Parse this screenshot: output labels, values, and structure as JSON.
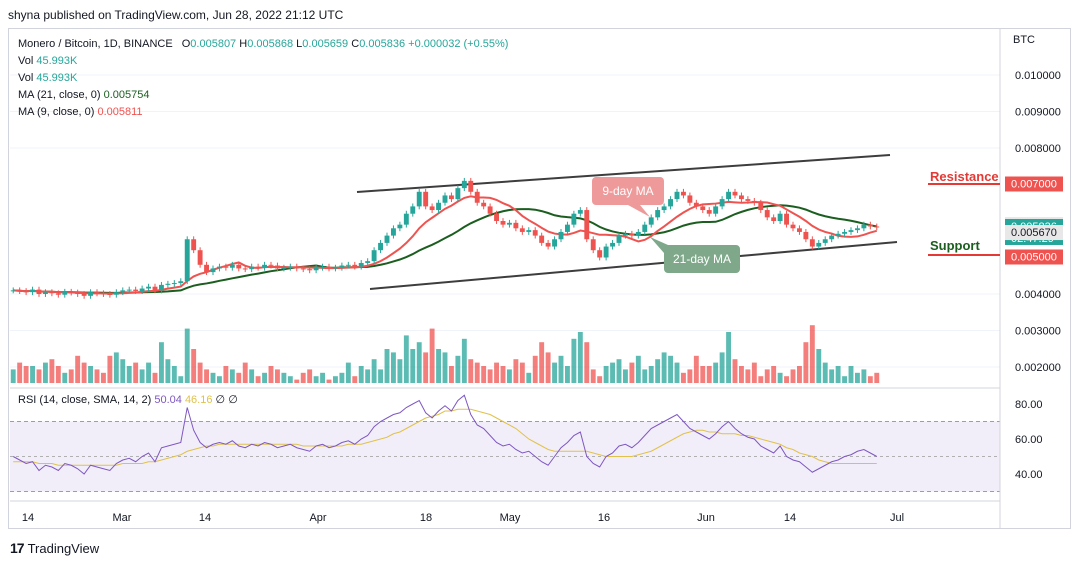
{
  "header": {
    "published": "shyna published on TradingView.com, Jun 28, 2022 21:12 UTC"
  },
  "footer": {
    "brand": "TradingView",
    "logo": "17"
  },
  "legend": {
    "symbol": "Monero / Bitcoin, 1D, BINANCE",
    "o_label": "O",
    "o": "0.005807",
    "h_label": "H",
    "h": "0.005868",
    "l_label": "L",
    "l": "0.005659",
    "c_label": "C",
    "c": "0.005836",
    "change": "+0.000032 (+0.55%)",
    "vol_label": "Vol",
    "vol": "45.993K",
    "vol2_label": "Vol",
    "vol2": "45.993K",
    "ma21_label": "MA (21, close, 0)",
    "ma21": "0.005754",
    "ma9_label": "MA (9, close, 0)",
    "ma9": "0.005811"
  },
  "rsi_legend": {
    "label": "RSI (14, close, SMA, 14, 2)",
    "rsi": "50.04",
    "sma": "46.16",
    "x1": "∅",
    "x2": "∅"
  },
  "currency": "BTC",
  "colors": {
    "up": "#26a69a",
    "down": "#ef5350",
    "ma9": "#ef5350",
    "ma21": "#1b5e20",
    "rsi": "#7e57c2",
    "rsi_sma": "#e0c24a",
    "channel": "#3d3d3d"
  },
  "annotations": {
    "resistance": "Resistance",
    "support": "Support",
    "ma9_label": "9-day MA",
    "ma21_label": "21-day MA"
  },
  "chart_data": {
    "type": "candlestick",
    "x_ticks": [
      "14",
      "Mar",
      "14",
      "Apr",
      "18",
      "May",
      "16",
      "Jun",
      "14",
      "Jul"
    ],
    "price_axis": {
      "ticks": [
        "0.010000",
        "0.009000",
        "0.008000",
        "0.004000",
        "0.003000",
        "0.002000"
      ],
      "tick_values": [
        0.01,
        0.009,
        0.008,
        0.004,
        0.003,
        0.002
      ]
    },
    "price_markers": [
      {
        "label": "0.007000",
        "value": 0.007,
        "color": "#ef5350",
        "type": "resistance"
      },
      {
        "label": "0.005890",
        "value": 0.00589,
        "color": "#e8e8e8",
        "type": "high"
      },
      {
        "label": "0.005836",
        "sub": "02:47:29",
        "value": 0.005836,
        "color": "#26a69a",
        "type": "last"
      },
      {
        "label": "0.005670",
        "value": 0.00567,
        "color": "#e8e8e8",
        "type": "low"
      },
      {
        "label": "0.005000",
        "value": 0.005,
        "color": "#ef5350",
        "type": "support"
      }
    ],
    "rsi_axis": {
      "ticks": [
        "80.00",
        "60.00",
        "40.00"
      ],
      "tick_values": [
        80,
        60,
        40
      ],
      "band": [
        30,
        70
      ],
      "mid": 50
    },
    "closes": [
      4.1,
      4.08,
      4.05,
      4.12,
      4.0,
      4.05,
      4.02,
      3.98,
      4.06,
      4.04,
      4.0,
      3.95,
      4.05,
      4.02,
      4.0,
      3.98,
      4.05,
      4.1,
      4.12,
      4.08,
      4.15,
      4.2,
      4.1,
      4.25,
      4.28,
      4.3,
      4.35,
      5.5,
      5.2,
      4.8,
      4.6,
      4.7,
      4.75,
      4.72,
      4.8,
      4.7,
      4.68,
      4.75,
      4.72,
      4.8,
      4.78,
      4.7,
      4.72,
      4.75,
      4.7,
      4.68,
      4.65,
      4.72,
      4.75,
      4.7,
      4.72,
      4.78,
      4.8,
      4.75,
      4.85,
      4.9,
      5.2,
      5.4,
      5.6,
      5.8,
      5.9,
      6.2,
      6.4,
      6.8,
      6.4,
      6.3,
      6.5,
      6.7,
      6.6,
      6.9,
      7.1,
      6.8,
      6.5,
      6.4,
      6.2,
      6.0,
      5.9,
      5.95,
      5.8,
      5.7,
      5.75,
      5.6,
      5.4,
      5.3,
      5.5,
      5.7,
      5.9,
      6.2,
      6.3,
      5.5,
      5.2,
      5.0,
      5.3,
      5.4,
      5.6,
      5.65,
      5.6,
      5.7,
      5.9,
      6.1,
      6.3,
      6.4,
      6.6,
      6.8,
      6.7,
      6.5,
      6.4,
      6.3,
      6.2,
      6.4,
      6.6,
      6.8,
      6.7,
      6.6,
      6.55,
      6.5,
      6.3,
      6.1,
      6.0,
      6.2,
      5.9,
      5.8,
      5.7,
      5.5,
      5.3,
      5.4,
      5.5,
      5.6,
      5.65,
      5.7,
      5.75,
      5.8,
      5.9,
      5.85,
      5.83
    ],
    "volumes": [
      2.4,
      2.6,
      2.5,
      2.5,
      2.4,
      2.6,
      2.7,
      2.5,
      2.3,
      2.4,
      2.8,
      2.6,
      2.5,
      2.4,
      2.3,
      2.8,
      2.9,
      2.7,
      2.5,
      2.6,
      2.4,
      2.6,
      2.3,
      3.2,
      2.7,
      2.5,
      2.2,
      3.6,
      3.0,
      2.6,
      2.4,
      2.3,
      2.2,
      2.5,
      2.4,
      2.3,
      2.6,
      2.4,
      2.2,
      2.3,
      2.5,
      2.4,
      2.3,
      2.2,
      2.1,
      2.3,
      2.4,
      2.2,
      2.3,
      2.1,
      2.2,
      2.3,
      2.6,
      2.2,
      2.5,
      2.4,
      2.7,
      2.4,
      3.0,
      2.9,
      2.7,
      3.4,
      3.0,
      3.2,
      2.9,
      3.6,
      3.0,
      2.9,
      2.5,
      2.8,
      3.3,
      2.7,
      2.6,
      2.5,
      2.4,
      2.6,
      2.5,
      2.4,
      2.7,
      2.6,
      2.3,
      2.8,
      3.2,
      2.9,
      2.6,
      2.8,
      2.5,
      3.3,
      3.5,
      3.2,
      2.4,
      2.2,
      2.5,
      2.6,
      2.7,
      2.4,
      2.6,
      2.8,
      2.4,
      2.5,
      2.7,
      2.9,
      2.8,
      2.6,
      2.3,
      2.4,
      2.8,
      2.5,
      2.5,
      2.6,
      2.9,
      3.5,
      2.7,
      2.5,
      2.4,
      2.6,
      2.2,
      2.4,
      2.5,
      2.3,
      2.2,
      2.4,
      2.5,
      3.2,
      3.7,
      3.0,
      2.6,
      2.4,
      2.5,
      2.2,
      2.5,
      2.3,
      2.4,
      2.2,
      2.3
    ],
    "rsi": [
      50,
      48,
      46,
      47,
      42,
      45,
      44,
      42,
      46,
      45,
      43,
      40,
      45,
      44,
      43,
      42,
      46,
      48,
      49,
      47,
      50,
      52,
      47,
      55,
      56,
      57,
      58,
      78,
      65,
      58,
      55,
      57,
      58,
      57,
      59,
      56,
      55,
      57,
      56,
      58,
      57,
      55,
      56,
      57,
      55,
      54,
      53,
      56,
      57,
      55,
      56,
      58,
      59,
      57,
      60,
      62,
      67,
      70,
      72,
      74,
      75,
      78,
      80,
      82,
      75,
      72,
      76,
      79,
      76,
      82,
      85,
      74,
      68,
      66,
      62,
      58,
      56,
      57,
      54,
      52,
      53,
      50,
      47,
      45,
      50,
      55,
      58,
      62,
      64,
      50,
      46,
      44,
      50,
      52,
      56,
      57,
      55,
      58,
      62,
      66,
      68,
      70,
      72,
      74,
      70,
      66,
      64,
      62,
      60,
      63,
      67,
      70,
      66,
      63,
      61,
      60,
      56,
      54,
      52,
      56,
      50,
      48,
      47,
      44,
      41,
      43,
      45,
      47,
      48,
      50,
      51,
      53,
      54,
      52,
      50
    ],
    "rsi_sma": [
      47,
      47,
      47,
      47,
      46,
      46,
      46,
      45,
      45,
      45,
      45,
      45,
      45,
      45,
      45,
      45,
      45,
      46,
      46,
      46,
      46,
      47,
      47,
      48,
      49,
      50,
      51,
      53,
      54,
      55,
      56,
      56,
      57,
      57,
      57,
      57,
      57,
      57,
      57,
      57,
      57,
      57,
      57,
      57,
      57,
      56,
      56,
      56,
      56,
      56,
      56,
      56,
      57,
      57,
      57,
      58,
      59,
      60,
      61,
      63,
      64,
      66,
      68,
      70,
      72,
      73,
      74,
      76,
      76,
      77,
      77,
      77,
      76,
      75,
      74,
      72,
      70,
      68,
      66,
      63,
      60,
      58,
      56,
      54,
      53,
      53,
      53,
      53,
      53,
      53,
      52,
      51,
      50,
      50,
      50,
      50,
      50,
      51,
      52,
      53,
      55,
      57,
      59,
      61,
      63,
      64,
      65,
      65,
      64,
      64,
      63,
      63,
      63,
      62,
      62,
      61,
      60,
      59,
      58,
      57,
      55,
      54,
      52,
      51,
      50,
      48,
      47,
      46,
      46,
      46,
      46,
      46,
      46,
      46,
      46
    ]
  }
}
